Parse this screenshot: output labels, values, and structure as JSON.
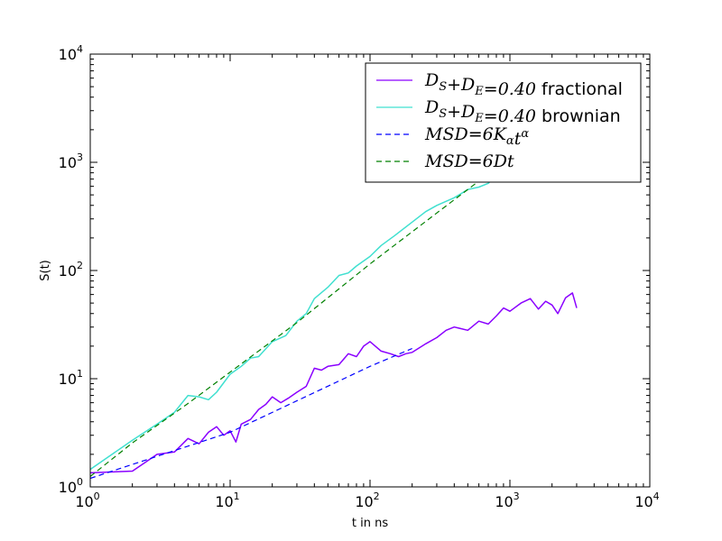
{
  "chart_data": {
    "type": "line",
    "title": "",
    "xlabel": "t in ns",
    "ylabel": "S(t)",
    "xscale": "log",
    "yscale": "log",
    "xlim": [
      1,
      10000
    ],
    "ylim": [
      1,
      10000
    ],
    "grid": false,
    "legend_position": "top-right",
    "x_tick_labels": [
      {
        "base": "10",
        "exp": "0"
      },
      {
        "base": "10",
        "exp": "1"
      },
      {
        "base": "10",
        "exp": "2"
      },
      {
        "base": "10",
        "exp": "3"
      },
      {
        "base": "10",
        "exp": "4"
      }
    ],
    "y_tick_labels": [
      {
        "base": "10",
        "exp": "0"
      },
      {
        "base": "10",
        "exp": "1"
      },
      {
        "base": "10",
        "exp": "2"
      },
      {
        "base": "10",
        "exp": "3"
      },
      {
        "base": "10",
        "exp": "4"
      }
    ],
    "series": [
      {
        "name": "D_S+D_E=0.40 fractional",
        "legend_math": "D_S+D_E=0.40",
        "legend_suffix": "fractional",
        "color": "#8a00ff",
        "style": "solid",
        "x": [
          1,
          2,
          3,
          4,
          5,
          6,
          7,
          8,
          9,
          10,
          11,
          12,
          14,
          16,
          18,
          20,
          23,
          26,
          30,
          35,
          40,
          45,
          50,
          60,
          70,
          80,
          90,
          100,
          120,
          140,
          160,
          180,
          200,
          250,
          300,
          350,
          400,
          500,
          600,
          700,
          800,
          900,
          1000,
          1200,
          1400,
          1600,
          1800,
          2000,
          2200,
          2500,
          2800,
          3000
        ],
        "y": [
          1.35,
          1.4,
          2.0,
          2.1,
          2.8,
          2.5,
          3.2,
          3.6,
          3.0,
          3.3,
          2.6,
          3.8,
          4.2,
          5.2,
          5.8,
          6.8,
          6.0,
          6.6,
          7.5,
          8.5,
          12.5,
          12.0,
          13.0,
          13.5,
          17.0,
          16.0,
          20.0,
          22.0,
          18.0,
          17.0,
          16.0,
          17.0,
          17.5,
          21.0,
          24.0,
          28.0,
          30.0,
          28.0,
          34.0,
          32.0,
          38.0,
          45.0,
          42.0,
          50.0,
          55.0,
          44.0,
          52.0,
          48.0,
          40.0,
          56.0,
          62.0,
          45.0
        ]
      },
      {
        "name": "D_S+D_E=0.40 brownian",
        "legend_math": "D_S+D_E=0.40",
        "legend_suffix": "brownian",
        "color": "#40e0d0",
        "style": "solid",
        "x": [
          1,
          2,
          3,
          4,
          5,
          6,
          7,
          8,
          10,
          12,
          14,
          16,
          20,
          25,
          30,
          35,
          40,
          50,
          60,
          70,
          80,
          100,
          120,
          150,
          200,
          250,
          300,
          400,
          500,
          600,
          700,
          800
        ],
        "y": [
          1.45,
          2.7,
          3.8,
          4.9,
          7.0,
          6.8,
          6.4,
          7.5,
          11.0,
          13.0,
          15.5,
          16.0,
          22.0,
          25.0,
          34.0,
          40.0,
          55.0,
          70.0,
          90.0,
          95.0,
          110.0,
          135.0,
          170.0,
          210.0,
          280.0,
          350.0,
          400.0,
          470.0,
          560.0,
          590.0,
          640.0,
          760.0
        ]
      },
      {
        "name": "MSD=6K_αt^α",
        "legend_math": "MSD=6K_αt^α",
        "color": "#0000ff",
        "style": "dashed",
        "x": [
          1,
          10,
          100,
          200
        ],
        "y": [
          1.2,
          3.2,
          13.0,
          19.0
        ]
      },
      {
        "name": "MSD=6Dt",
        "legend_math": "MSD=6Dt",
        "color": "#008000",
        "style": "dashed",
        "x": [
          1,
          2,
          5,
          10,
          30,
          100,
          300,
          700
        ],
        "y": [
          1.25,
          2.55,
          5.9,
          11.5,
          33.0,
          115.0,
          340.0,
          780.0
        ]
      }
    ]
  }
}
